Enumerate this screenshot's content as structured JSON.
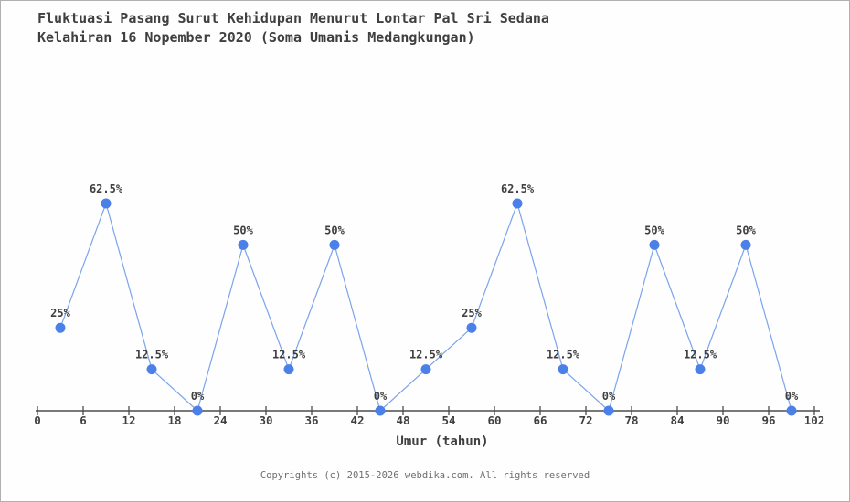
{
  "title": {
    "line1": "Fluktuasi Pasang Surut Kehidupan Menurut Lontar Pal Sri Sedana",
    "line2": "Kelahiran 16 Nopember 2020 (Soma Umanis Medangkungan)"
  },
  "footer": {
    "text": "Copyrights (c) 2015-2026 webdika.com. All rights reserved"
  },
  "colors": {
    "marker": "#4a80e8",
    "line": "#7aa4ec",
    "text": "#3f3f3f",
    "axis": "#4d4d4d",
    "footer_text": "#6f6f6f",
    "background": "#fefefe",
    "border": "#b0b0b0"
  },
  "chart_data": {
    "type": "line",
    "title": "Fluktuasi Pasang Surut Kehidupan Menurut Lontar Pal Sri Sedana Kelahiran 16 Nopember 2020 (Soma Umanis Medangkungan)",
    "xlabel": "Umur (tahun)",
    "ylabel": "",
    "x": [
      3,
      9,
      15,
      21,
      27,
      33,
      39,
      45,
      51,
      57,
      63,
      69,
      75,
      81,
      87,
      93,
      99
    ],
    "values": [
      25,
      62.5,
      12.5,
      0,
      50,
      12.5,
      50,
      0,
      12.5,
      25,
      62.5,
      12.5,
      0,
      50,
      12.5,
      50,
      0
    ],
    "point_labels": [
      "25%",
      "62.5%",
      "12.5%",
      "0%",
      "50%",
      "12.5%",
      "50%",
      "0%",
      "12.5%",
      "25%",
      "62.5%",
      "12.5%",
      "0%",
      "50%",
      "12.5%",
      "50%",
      "0%"
    ],
    "x_ticks": [
      0,
      6,
      12,
      18,
      24,
      30,
      36,
      42,
      48,
      54,
      60,
      66,
      72,
      78,
      84,
      90,
      96,
      102
    ],
    "xlim": [
      0,
      102
    ],
    "ylim": [
      0,
      100
    ],
    "grid": false,
    "legend": "none",
    "markers": true
  }
}
